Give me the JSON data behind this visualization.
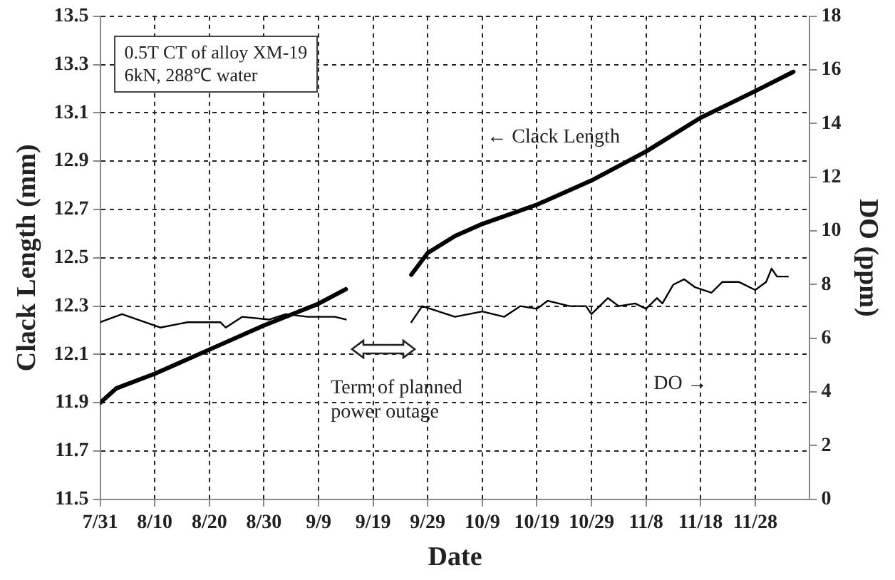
{
  "chart_data": {
    "type": "line",
    "xlabel": "Date",
    "ylabel": "Clack Length (mm)",
    "y2label": "DO (ppm)",
    "annotations": [
      "0.5T CT of alloy XM-19\n6kN, 288℃ water",
      "← Clack Length",
      "DO →",
      "Term of planned\npower outage"
    ],
    "series": [
      {
        "color": "#000000",
        "x": [
          "--07-31",
          "--08-03",
          "--08-10",
          "--08-20",
          "--08-30",
          "--09-09",
          "--09-14",
          "--09-20",
          "--09-26",
          "--09-29",
          "--10-04",
          "--10-09",
          "--10-19",
          "--10-29",
          "--11-08",
          "--11-18",
          "--11-28",
          "--12-05"
        ],
        "values": [
          11.9,
          11.96,
          12.02,
          12.12,
          12.22,
          12.31,
          12.37,
          null,
          12.43,
          12.52,
          12.59,
          12.64,
          12.72,
          12.82,
          12.94,
          13.08,
          13.19,
          13.27
        ]
      },
      {
        "color": "#000000",
        "axis": "y2",
        "x": [
          "--07-31",
          "--08-04",
          "--08-11",
          "--08-16",
          "--08-22",
          "--08-23",
          "--08-26",
          "--08-31",
          "--09-03",
          "--09-07",
          "--09-12",
          "--09-14",
          "--09-20",
          "--09-26",
          "--09-28",
          "--10-04",
          "--10-09",
          "--10-13",
          "--10-16",
          "--10-19",
          "--10-21",
          "--10-25",
          "--10-28",
          "--10-29",
          "--11-01",
          "--11-03",
          "--11-06",
          "--11-08",
          "--11-10",
          "--11-11",
          "--11-13",
          "--11-15",
          "--11-17",
          "--11-20",
          "--11-22",
          "--11-25",
          "--11-28",
          "--11-30",
          "--12-01",
          "--12-02",
          "--12-04"
        ],
        "values": [
          6.6,
          6.9,
          6.4,
          6.6,
          6.6,
          6.4,
          6.8,
          6.7,
          6.9,
          6.8,
          6.8,
          6.7,
          null,
          6.6,
          7.2,
          6.8,
          7.0,
          6.8,
          7.2,
          7.1,
          7.4,
          7.2,
          7.2,
          6.9,
          7.5,
          7.2,
          7.3,
          7.1,
          7.5,
          7.3,
          8.0,
          8.2,
          7.9,
          7.7,
          8.1,
          8.1,
          7.8,
          8.1,
          8.6,
          8.3,
          8.3
        ]
      }
    ],
    "xlim": [
      "--07-31",
      "--12-08"
    ],
    "xticks": [
      {
        "value": "--07-31",
        "label": "7/31"
      },
      {
        "value": "--08-10",
        "label": "8/10"
      },
      {
        "value": "--08-20",
        "label": "8/20"
      },
      {
        "value": "--08-30",
        "label": "8/30"
      },
      {
        "value": "--09-09",
        "label": "9/9"
      },
      {
        "value": "--09-19",
        "label": "9/19"
      },
      {
        "value": "--09-29",
        "label": "9/29"
      },
      {
        "value": "--10-09",
        "label": "10/9"
      },
      {
        "value": "--10-19",
        "label": "10/19"
      },
      {
        "value": "--10-29",
        "label": "10/29"
      },
      {
        "value": "--11-08",
        "label": "11/8"
      },
      {
        "value": "--11-18",
        "label": "11/18"
      },
      {
        "value": "--11-28",
        "label": "11/28"
      }
    ],
    "ylim": [
      11.5,
      13.5
    ],
    "yticks": [
      11.5,
      11.7,
      11.9,
      12.1,
      12.3,
      12.5,
      12.7,
      12.9,
      13.1,
      13.3,
      13.5
    ],
    "y2lim": [
      0,
      18
    ],
    "y2ticks": [
      0,
      2,
      4,
      6,
      8,
      10,
      12,
      14,
      16,
      18
    ],
    "grid": true,
    "legend": false,
    "marker": "none",
    "line_style": "solid"
  }
}
